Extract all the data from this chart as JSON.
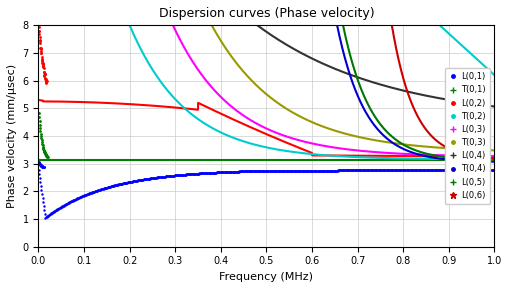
{
  "title": "Dispersion curves (Phase velocity)",
  "xlabel": "Frequency (MHz)",
  "ylabel": "Phase velocity (mm/µsec)",
  "xlim": [
    0,
    1.0
  ],
  "ylim": [
    0,
    8
  ],
  "yticks": [
    0,
    1,
    2,
    3,
    4,
    5,
    6,
    7,
    8
  ],
  "xticks": [
    0,
    0.1,
    0.2,
    0.3,
    0.4,
    0.5,
    0.6,
    0.7,
    0.8,
    0.9,
    1.0
  ],
  "colors": {
    "L01": "#0000ff",
    "T01": "#008000",
    "L02": "#ff0000",
    "T02": "#00cccc",
    "L03": "#ff00ff",
    "T03": "#999900",
    "L04": "#333333",
    "T04": "#0000cc",
    "L05": "#007700",
    "L06": "#cc0000"
  },
  "background_color": "#ffffff",
  "grid_color": "#cccccc"
}
